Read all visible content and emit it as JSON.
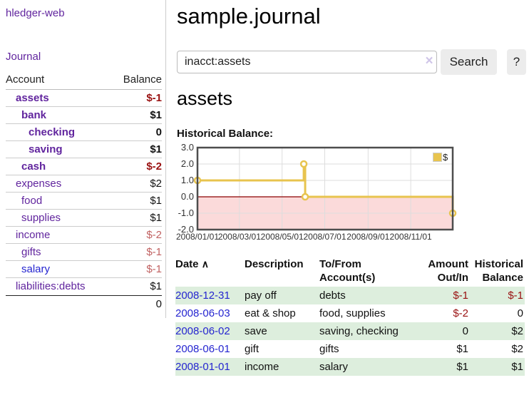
{
  "app": {
    "brand": "hledger-web",
    "nav_journal": "Journal"
  },
  "sidebar": {
    "header": {
      "account": "Account",
      "balance": "Balance"
    },
    "accounts": [
      {
        "name": "assets",
        "balance": "$-1"
      },
      {
        "name": "bank",
        "balance": "$1"
      },
      {
        "name": "checking",
        "balance": "0"
      },
      {
        "name": "saving",
        "balance": "$1"
      },
      {
        "name": "cash",
        "balance": "$-2"
      },
      {
        "name": "expenses",
        "balance": "$2"
      },
      {
        "name": "food",
        "balance": "$1"
      },
      {
        "name": "supplies",
        "balance": "$1"
      },
      {
        "name": "income",
        "balance": "$-2"
      },
      {
        "name": "gifts",
        "balance": "$-1"
      },
      {
        "name": "salary",
        "balance": "$-1"
      },
      {
        "name": "liabilities:debts",
        "balance": "$1"
      }
    ],
    "total": "0"
  },
  "header": {
    "title": "sample.journal"
  },
  "search": {
    "value": "inacct:assets",
    "clear_icon": "×",
    "button": "Search",
    "help": "?"
  },
  "account_page": {
    "title": "assets",
    "chart_label": "Historical Balance:"
  },
  "chart_data": {
    "type": "line",
    "title": "Historical Balance",
    "step": true,
    "series": [
      {
        "name": "$",
        "points": [
          [
            "2008-01-01",
            1.0
          ],
          [
            "2008-06-01",
            2.0
          ],
          [
            "2008-06-03",
            0.0
          ],
          [
            "2008-12-31",
            -1.0
          ]
        ]
      }
    ],
    "x_range": [
      "2008-01-01",
      "2008-12-31"
    ],
    "ylim": [
      -2.0,
      3.0
    ],
    "y_ticks": [
      3.0,
      2.0,
      1.0,
      0.0,
      -1.0,
      -2.0
    ],
    "y_tick_labels": [
      "3.0",
      "2.0",
      "1.0",
      "0.0",
      "-1.0",
      "-2.0"
    ],
    "x_tick_dates": [
      "2008-01-01",
      "2008-03-01",
      "2008-05-01",
      "2008-07-01",
      "2008-09-01",
      "2008-11-01"
    ],
    "x_tick_labels": [
      "2008/01/01",
      "2008/03/01",
      "2008/05/01",
      "2008/07/01",
      "2008/09/01",
      "2008/11/01"
    ],
    "legend": "$",
    "legend_position": "top-right",
    "grid": true,
    "colors": {
      "line": "#e8c44f",
      "marker_fill": "#ffffff",
      "negative_area": "#fbdada",
      "zero_line": "#8b0000",
      "grid": "#ddd",
      "border": "#4d4d4d"
    }
  },
  "register": {
    "sort_icon": "∧",
    "columns": [
      "Date",
      "Description",
      "To/From Account(s)",
      "Amount Out/In",
      "Historical Balance"
    ],
    "rows": [
      {
        "date": "2008-12-31",
        "description": "pay off",
        "accounts": "debts",
        "amount": "$-1",
        "balance": "$-1"
      },
      {
        "date": "2008-06-03",
        "description": "eat & shop",
        "accounts": "food, supplies",
        "amount": "$-2",
        "balance": "0"
      },
      {
        "date": "2008-06-02",
        "description": "save",
        "accounts": "saving, checking",
        "amount": "0",
        "balance": "$2"
      },
      {
        "date": "2008-06-01",
        "description": "gift",
        "accounts": "gifts",
        "amount": "$1",
        "balance": "$2"
      },
      {
        "date": "2008-01-01",
        "description": "income",
        "accounts": "salary",
        "amount": "$1",
        "balance": "$1"
      }
    ]
  }
}
